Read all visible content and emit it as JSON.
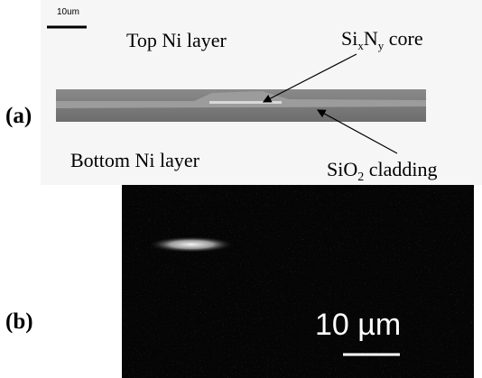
{
  "panel_a": {
    "label": "(a)",
    "scale_bar": "10um",
    "top_layer": "Top Ni layer",
    "bottom_layer": "Bottom Ni layer",
    "core": [
      "Si",
      "x",
      "N",
      "y",
      " core"
    ],
    "cladding": [
      "SiO",
      "2",
      " cladding"
    ]
  },
  "panel_b": {
    "label": "(b)",
    "scale_bar": "10 µm"
  }
}
